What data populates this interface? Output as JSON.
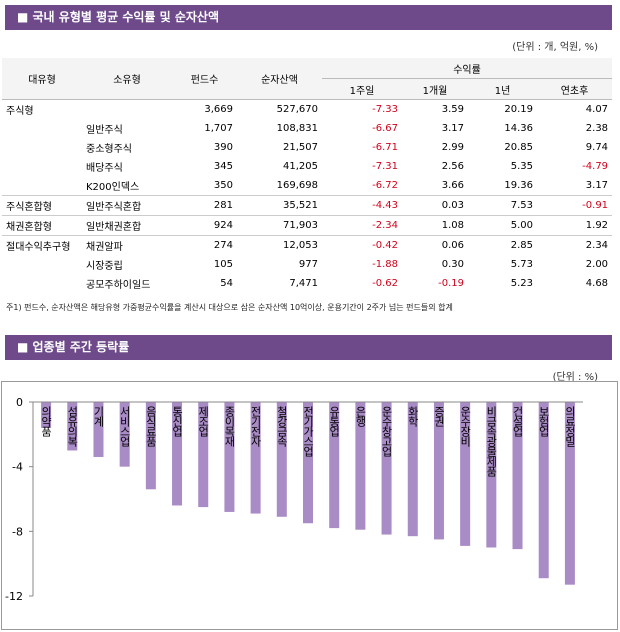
{
  "section1": {
    "title": "■ 국내 유형별 평균 수익률 및 순자산액",
    "unit": "(단위 : 개, 억원, %)",
    "table": {
      "headers": [
        "대유형",
        "소유형",
        "펀드수",
        "순자산액"
      ],
      "return_header": "수익률",
      "return_periods": [
        "1주일",
        "1개월",
        "1년",
        "연초후"
      ],
      "groups": [
        {
          "type": "주식형",
          "rows": [
            {
              "cells": [
                "3,669",
                "527,670",
                "-7.33",
                "3.59",
                "20.19",
                "4.07"
              ]
            },
            {
              "subtype": "일반주식",
              "cells": [
                "1,707",
                "108,831",
                "-6.67",
                "3.17",
                "14.36",
                "2.38"
              ]
            },
            {
              "subtype": "중소형주식",
              "cells": [
                "390",
                "21,507",
                "-6.71",
                "2.99",
                "20.85",
                "9.74"
              ]
            },
            {
              "subtype": "배당주식",
              "cells": [
                "345",
                "41,205",
                "-7.31",
                "2.56",
                "5.35",
                "-4.79"
              ]
            },
            {
              "subtype": "K200인덱스",
              "cells": [
                "350",
                "169,698",
                "-6.72",
                "3.66",
                "19.36",
                "3.17"
              ]
            }
          ]
        },
        {
          "type": "주식혼합형",
          "rows": [
            {
              "subtype": "일반주식혼합",
              "cells": [
                "281",
                "35,521",
                "-4.43",
                "0.03",
                "7.53",
                "-0.91"
              ]
            }
          ]
        },
        {
          "type": "채권혼합형",
          "rows": [
            {
              "subtype": "일반채권혼합",
              "cells": [
                "924",
                "71,903",
                "-2.34",
                "1.08",
                "5.00",
                "1.92"
              ]
            }
          ]
        },
        {
          "type": "절대수익추구형",
          "rows": [
            {
              "subtype": "채권알파",
              "cells": [
                "274",
                "12,053",
                "-0.42",
                "0.06",
                "2.85",
                "2.34"
              ]
            },
            {
              "subtype": "시장중립",
              "cells": [
                "105",
                "977",
                "-1.88",
                "0.30",
                "5.73",
                "2.00"
              ]
            },
            {
              "subtype": "공모주하이일드",
              "cells": [
                "54",
                "7,471",
                "-0.62",
                "-0.19",
                "5.23",
                "4.68"
              ]
            }
          ]
        }
      ]
    },
    "footnote": "주1) 펀드수, 순자산액은 해당유형 가중평균수익률을 계산시 대상으로 삼은 순자산액 10억이상, 운용기간이 2주가 넘는 펀드들의 합계"
  },
  "section2": {
    "title": "■ 업종별 주간 등락률",
    "unit": "(단위 : %)"
  },
  "chart_data": {
    "type": "bar",
    "color": "#a98bc6",
    "categories": [
      "의약품",
      "섬유의복",
      "기계",
      "서비스업",
      "음식료품",
      "통신업",
      "제조업",
      "종이목재",
      "전기전자",
      "철강금속",
      "전기가스업",
      "유통업",
      "은행",
      "운수창고업",
      "화학",
      "증권",
      "운수장비",
      "비금속광물제품",
      "건설업",
      "보험업",
      "의료정밀"
    ],
    "values": [
      -1.6,
      -3.0,
      -3.4,
      -4.0,
      -5.4,
      -6.4,
      -6.5,
      -6.8,
      -6.9,
      -7.1,
      -7.5,
      -7.8,
      -7.9,
      -8.2,
      -8.3,
      -8.5,
      -8.9,
      -9.0,
      -9.1,
      -10.9,
      -11.3
    ],
    "ylim": [
      -12,
      0
    ],
    "yticks": [
      0,
      -4,
      -8,
      -12
    ]
  }
}
